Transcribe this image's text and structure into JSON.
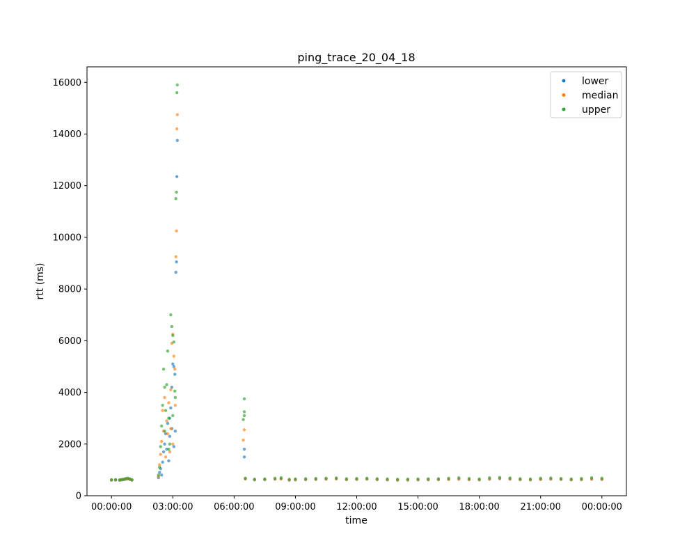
{
  "chart_data": {
    "type": "scatter",
    "title": "ping_trace_20_04_18",
    "xlabel": "time",
    "ylabel": "rtt (ms)",
    "x_unit": "hours",
    "xlim": [
      -1.2,
      25.2
    ],
    "ylim": [
      0,
      16600
    ],
    "x_ticks": [
      {
        "value": 0,
        "label": "00:00:00"
      },
      {
        "value": 3,
        "label": "03:00:00"
      },
      {
        "value": 6,
        "label": "06:00:00"
      },
      {
        "value": 9,
        "label": "09:00:00"
      },
      {
        "value": 12,
        "label": "12:00:00"
      },
      {
        "value": 15,
        "label": "15:00:00"
      },
      {
        "value": 18,
        "label": "18:00:00"
      },
      {
        "value": 21,
        "label": "21:00:00"
      },
      {
        "value": 24,
        "label": "00:00:00"
      }
    ],
    "y_ticks": [
      0,
      2000,
      4000,
      6000,
      8000,
      10000,
      12000,
      14000,
      16000
    ],
    "grid": false,
    "legend_position": "top-right",
    "series": [
      {
        "name": "lower",
        "color": "#1f77b4",
        "points": [
          [
            0.0,
            600
          ],
          [
            0.2,
            605
          ],
          [
            0.4,
            598
          ],
          [
            0.5,
            610
          ],
          [
            0.6,
            620
          ],
          [
            0.7,
            640
          ],
          [
            0.8,
            650
          ],
          [
            0.9,
            630
          ],
          [
            1.0,
            600
          ],
          [
            2.3,
            700
          ],
          [
            2.35,
            900
          ],
          [
            2.4,
            1050
          ],
          [
            2.45,
            800
          ],
          [
            2.5,
            1300
          ],
          [
            2.55,
            1700
          ],
          [
            2.6,
            2000
          ],
          [
            2.65,
            2400
          ],
          [
            2.7,
            1800
          ],
          [
            2.75,
            2800
          ],
          [
            2.8,
            1350
          ],
          [
            2.85,
            3000
          ],
          [
            2.9,
            3400
          ],
          [
            2.95,
            4200
          ],
          [
            3.0,
            5100
          ],
          [
            3.05,
            5000
          ],
          [
            3.1,
            4700
          ],
          [
            3.15,
            8650
          ],
          [
            3.18,
            9050
          ],
          [
            3.2,
            12350
          ],
          [
            3.22,
            13750
          ],
          [
            2.85,
            2300
          ],
          [
            2.95,
            2600
          ],
          [
            3.05,
            1900
          ],
          [
            3.12,
            2500
          ],
          [
            6.5,
            1500
          ],
          [
            6.5,
            1800
          ],
          [
            6.55,
            650
          ],
          [
            7.0,
            610
          ],
          [
            7.5,
            620
          ],
          [
            8.0,
            640
          ],
          [
            8.3,
            650
          ],
          [
            8.7,
            600
          ],
          [
            9.0,
            610
          ],
          [
            9.5,
            620
          ],
          [
            10.0,
            630
          ],
          [
            10.5,
            640
          ],
          [
            11.0,
            650
          ],
          [
            11.5,
            620
          ],
          [
            12.0,
            630
          ],
          [
            12.5,
            640
          ],
          [
            13.0,
            620
          ],
          [
            13.5,
            610
          ],
          [
            14.0,
            600
          ],
          [
            14.5,
            605
          ],
          [
            15.0,
            610
          ],
          [
            15.5,
            615
          ],
          [
            16.0,
            620
          ],
          [
            16.5,
            630
          ],
          [
            17.0,
            640
          ],
          [
            17.5,
            620
          ],
          [
            18.0,
            610
          ],
          [
            18.5,
            640
          ],
          [
            19.0,
            660
          ],
          [
            19.5,
            640
          ],
          [
            20.0,
            620
          ],
          [
            20.5,
            610
          ],
          [
            21.0,
            630
          ],
          [
            21.5,
            640
          ],
          [
            22.0,
            630
          ],
          [
            22.5,
            610
          ],
          [
            23.0,
            620
          ],
          [
            23.5,
            640
          ],
          [
            24.0,
            630
          ]
        ]
      },
      {
        "name": "median",
        "color": "#ff7f0e",
        "points": [
          [
            0.0,
            610
          ],
          [
            0.2,
            615
          ],
          [
            0.4,
            608
          ],
          [
            0.5,
            620
          ],
          [
            0.6,
            630
          ],
          [
            0.7,
            650
          ],
          [
            0.8,
            660
          ],
          [
            0.9,
            640
          ],
          [
            1.0,
            610
          ],
          [
            2.3,
            750
          ],
          [
            2.35,
            1200
          ],
          [
            2.4,
            1600
          ],
          [
            2.45,
            2100
          ],
          [
            2.5,
            3300
          ],
          [
            2.55,
            2500
          ],
          [
            2.6,
            3800
          ],
          [
            2.65,
            1500
          ],
          [
            2.7,
            2900
          ],
          [
            2.75,
            2400
          ],
          [
            2.8,
            3600
          ],
          [
            2.85,
            1700
          ],
          [
            2.9,
            4100
          ],
          [
            2.95,
            5900
          ],
          [
            3.0,
            6250
          ],
          [
            3.05,
            5400
          ],
          [
            3.1,
            4900
          ],
          [
            3.12,
            3500
          ],
          [
            3.15,
            9250
          ],
          [
            3.18,
            10250
          ],
          [
            3.2,
            14200
          ],
          [
            3.22,
            14750
          ],
          [
            2.9,
            2600
          ],
          [
            3.0,
            2000
          ],
          [
            6.45,
            2150
          ],
          [
            6.5,
            2550
          ],
          [
            6.55,
            660
          ],
          [
            7.0,
            620
          ],
          [
            7.5,
            630
          ],
          [
            8.0,
            650
          ],
          [
            8.3,
            660
          ],
          [
            8.7,
            610
          ],
          [
            9.0,
            620
          ],
          [
            9.5,
            630
          ],
          [
            10.0,
            640
          ],
          [
            10.5,
            650
          ],
          [
            11.0,
            660
          ],
          [
            11.5,
            630
          ],
          [
            12.0,
            640
          ],
          [
            12.5,
            650
          ],
          [
            13.0,
            630
          ],
          [
            13.5,
            620
          ],
          [
            14.0,
            610
          ],
          [
            14.5,
            615
          ],
          [
            15.0,
            620
          ],
          [
            15.5,
            625
          ],
          [
            16.0,
            630
          ],
          [
            16.5,
            640
          ],
          [
            17.0,
            650
          ],
          [
            17.5,
            630
          ],
          [
            18.0,
            620
          ],
          [
            18.5,
            650
          ],
          [
            19.0,
            670
          ],
          [
            19.5,
            650
          ],
          [
            20.0,
            630
          ],
          [
            20.5,
            620
          ],
          [
            21.0,
            640
          ],
          [
            21.5,
            650
          ],
          [
            22.0,
            640
          ],
          [
            22.5,
            620
          ],
          [
            23.0,
            630
          ],
          [
            23.5,
            650
          ],
          [
            24.0,
            640
          ]
        ]
      },
      {
        "name": "upper",
        "color": "#2ca02c",
        "points": [
          [
            0.0,
            620
          ],
          [
            0.2,
            625
          ],
          [
            0.4,
            618
          ],
          [
            0.5,
            630
          ],
          [
            0.6,
            640
          ],
          [
            0.7,
            670
          ],
          [
            0.8,
            680
          ],
          [
            0.9,
            650
          ],
          [
            1.0,
            620
          ],
          [
            2.3,
            800
          ],
          [
            2.35,
            1100
          ],
          [
            2.4,
            1900
          ],
          [
            2.45,
            2700
          ],
          [
            2.5,
            3500
          ],
          [
            2.55,
            4900
          ],
          [
            2.6,
            4200
          ],
          [
            2.65,
            3300
          ],
          [
            2.7,
            4300
          ],
          [
            2.75,
            5600
          ],
          [
            2.8,
            3000
          ],
          [
            2.85,
            2000
          ],
          [
            2.9,
            7000
          ],
          [
            2.95,
            6550
          ],
          [
            3.0,
            6200
          ],
          [
            3.05,
            5950
          ],
          [
            3.1,
            4050
          ],
          [
            3.12,
            3800
          ],
          [
            3.15,
            11500
          ],
          [
            3.18,
            11750
          ],
          [
            3.2,
            15600
          ],
          [
            3.22,
            15900
          ],
          [
            2.6,
            2500
          ],
          [
            2.8,
            1800
          ],
          [
            3.0,
            3100
          ],
          [
            6.45,
            2950
          ],
          [
            6.5,
            3250
          ],
          [
            6.5,
            3100
          ],
          [
            6.5,
            3750
          ],
          [
            6.55,
            680
          ],
          [
            7.0,
            640
          ],
          [
            7.5,
            650
          ],
          [
            8.0,
            680
          ],
          [
            8.3,
            700
          ],
          [
            8.7,
            640
          ],
          [
            9.0,
            650
          ],
          [
            9.5,
            660
          ],
          [
            10.0,
            670
          ],
          [
            10.5,
            680
          ],
          [
            11.0,
            690
          ],
          [
            11.5,
            660
          ],
          [
            12.0,
            670
          ],
          [
            12.5,
            680
          ],
          [
            13.0,
            660
          ],
          [
            13.5,
            650
          ],
          [
            14.0,
            640
          ],
          [
            14.5,
            645
          ],
          [
            15.0,
            650
          ],
          [
            15.5,
            655
          ],
          [
            16.0,
            660
          ],
          [
            16.5,
            680
          ],
          [
            17.0,
            700
          ],
          [
            17.5,
            670
          ],
          [
            18.0,
            650
          ],
          [
            18.5,
            700
          ],
          [
            19.0,
            710
          ],
          [
            19.5,
            690
          ],
          [
            20.0,
            660
          ],
          [
            20.5,
            650
          ],
          [
            21.0,
            680
          ],
          [
            21.5,
            690
          ],
          [
            22.0,
            670
          ],
          [
            22.5,
            650
          ],
          [
            23.0,
            670
          ],
          [
            23.5,
            700
          ],
          [
            24.0,
            680
          ]
        ]
      }
    ]
  }
}
